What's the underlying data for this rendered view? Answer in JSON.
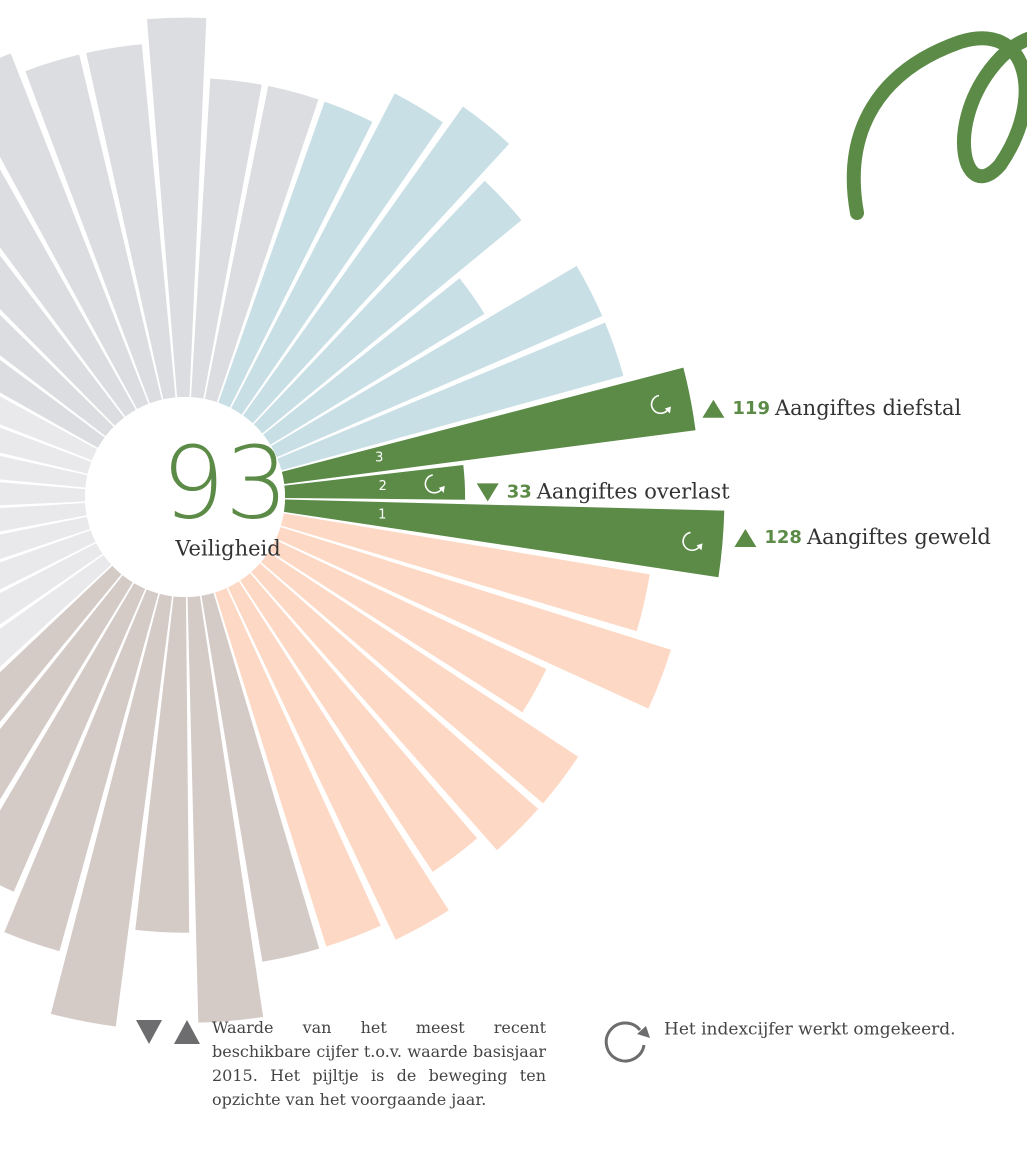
{
  "chart_data": {
    "type": "polar-bar",
    "center_value": 93,
    "center_label": "Veiligheid",
    "values": [
      119,
      33,
      128,
      103,
      117,
      77,
      103,
      103,
      95,
      110,
      103,
      103,
      123,
      90,
      126,
      103,
      88,
      73,
      59,
      80,
      95,
      85,
      75,
      70,
      65,
      70,
      80,
      90,
      95,
      100,
      95,
      100,
      105,
      97,
      97,
      106,
      84,
      84,
      84,
      97,
      106,
      90,
      59,
      97,
      97
    ],
    "colors": [
      "#5b8b47",
      "#5b8b47",
      "#5b8b47",
      "#fdd9c5",
      "#fdd9c5",
      "#fdd9c5",
      "#fdd9c5",
      "#fdd9c5",
      "#fdd9c5",
      "#fdd9c5",
      "#fdd9c5",
      "#d4cbc7",
      "#d4cbc7",
      "#d4cbc7",
      "#d4cbc7",
      "#d4cbc7",
      "#d4cbc7",
      "#d4cbc7",
      "#d4cbc7",
      "#e9e9ec",
      "#e9e9ec",
      "#e9e9ec",
      "#e9e9ec",
      "#e9e9ec",
      "#e9e9ec",
      "#e9e9ec",
      "#e9e9ec",
      "#e9e9ec",
      "#dcdde0",
      "#dcdde0",
      "#dcdde0",
      "#dcdde0",
      "#dcdde0",
      "#dcdde0",
      "#dcdde0",
      "#dcdde0",
      "#dcdde0",
      "#dcdde0",
      "#c9dfe6",
      "#c9dfe6",
      "#c9dfe6",
      "#c9dfe6",
      "#c9dfe6",
      "#c9dfe6",
      "#c9dfe6"
    ],
    "highlights": [
      {
        "index": 0,
        "number": 3,
        "direction": "up",
        "label": "Aangiftes diefstal",
        "reversed": true
      },
      {
        "index": 1,
        "number": 2,
        "direction": "down",
        "label": "Aangiftes overlast",
        "reversed": true
      },
      {
        "index": 2,
        "number": 1,
        "direction": "up",
        "label": "Aangiftes geweld",
        "reversed": true
      }
    ],
    "legend": {
      "arrows_text": "Waarde van het meest recent beschikbare cijfer t.o.v. waarde basisjaar 2015. Het pijltje is de beweging ten opzichte van het voorgaande jaar.",
      "reversed_text": "Het indexcijfer werkt omgekeerd."
    }
  }
}
